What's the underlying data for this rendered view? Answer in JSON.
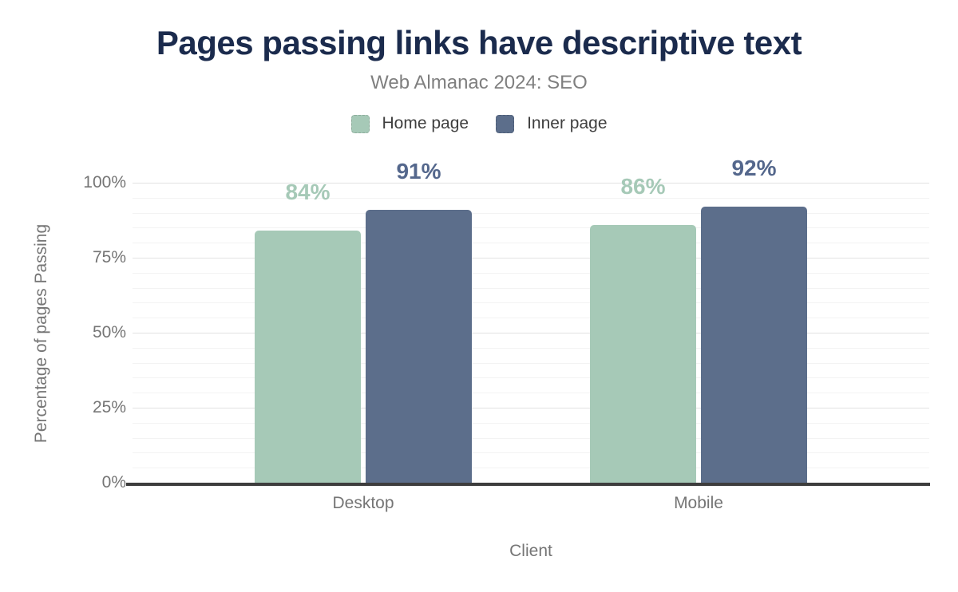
{
  "chart_data": {
    "type": "bar",
    "title": "Pages passing links have descriptive text",
    "subtitle": "Web Almanac 2024: SEO",
    "categories": [
      "Desktop",
      "Mobile"
    ],
    "series": [
      {
        "name": "Home page",
        "color": "#a6c9b7",
        "label_color": "#a6c9b7",
        "values": [
          84,
          86
        ]
      },
      {
        "name": "Inner page",
        "color": "#5c6e8b",
        "label_color": "#54678c",
        "values": [
          91,
          92
        ]
      }
    ],
    "value_suffix": "%",
    "xlabel": "Client",
    "ylabel": "Percentage of pages Passing",
    "ylim": [
      0,
      100
    ],
    "yticks": [
      0,
      25,
      50,
      75,
      100
    ],
    "ytick_labels": [
      "0%",
      "25%",
      "50%",
      "75%",
      "100%"
    ],
    "minor_grid_step": 5,
    "grid": true,
    "legend_position": "top"
  },
  "colors": {
    "background": "#ffffff",
    "title": "#1b2b4d",
    "subtitle": "#7f7f7f",
    "axis_text": "#757575",
    "legend_text": "#3f3f3f",
    "axis_line": "#3d3d3d",
    "grid_major": "#e2e2e2",
    "grid_minor": "#f3f3f3"
  }
}
